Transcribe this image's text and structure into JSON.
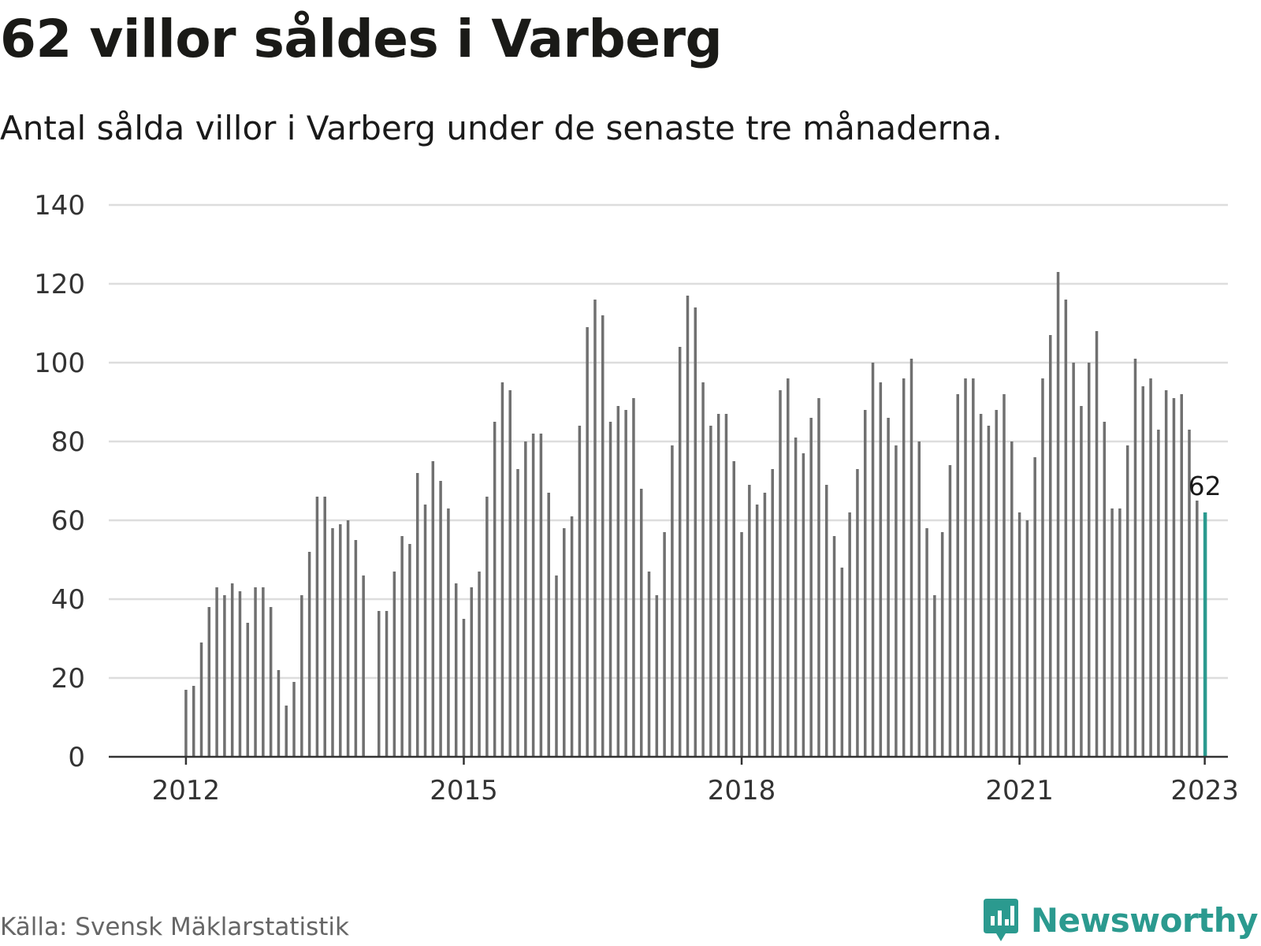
{
  "title": "62 villor såldes i Varberg",
  "subtitle": "Antal sålda villor i Varberg under de senaste tre månaderna.",
  "source": "Källa: Svensk Mäklarstatistik",
  "brand": {
    "name": "Newsworthy",
    "icon": "bar-chart-speech-bubble-icon"
  },
  "colors": {
    "bar": "#707070",
    "highlight": "#2b9a8f",
    "grid": "#dddddd",
    "axis": "#333333"
  },
  "chart_data": {
    "type": "bar",
    "title": "62 villor såldes i Varberg",
    "subtitle": "Antal sålda villor i Varberg under de senaste tre månaderna.",
    "xlabel": "",
    "ylabel": "",
    "x_start": "2012-01",
    "frequency": "monthly",
    "xlim": [
      "2011-03",
      "2023-04"
    ],
    "ylim": [
      0,
      140
    ],
    "yticks": [
      0,
      20,
      40,
      60,
      80,
      100,
      120,
      140
    ],
    "xticks": [
      {
        "label": "2012",
        "date": "2012-01"
      },
      {
        "label": "2015",
        "date": "2015-01"
      },
      {
        "label": "2018",
        "date": "2018-01"
      },
      {
        "label": "2021",
        "date": "2021-01"
      },
      {
        "label": "2023",
        "date": "2023-01"
      }
    ],
    "values": [
      17,
      18,
      29,
      38,
      43,
      41,
      44,
      42,
      34,
      43,
      43,
      38,
      22,
      13,
      19,
      41,
      52,
      66,
      66,
      58,
      59,
      60,
      55,
      46,
      null,
      37,
      37,
      47,
      56,
      54,
      72,
      64,
      75,
      70,
      63,
      44,
      35,
      43,
      47,
      66,
      85,
      95,
      93,
      73,
      80,
      82,
      82,
      67,
      46,
      58,
      61,
      84,
      109,
      116,
      112,
      85,
      89,
      88,
      91,
      68,
      47,
      41,
      57,
      79,
      104,
      117,
      114,
      95,
      84,
      87,
      87,
      75,
      57,
      69,
      64,
      67,
      73,
      93,
      96,
      81,
      77,
      86,
      91,
      69,
      56,
      48,
      62,
      73,
      88,
      100,
      95,
      86,
      79,
      96,
      101,
      80,
      58,
      41,
      57,
      74,
      92,
      96,
      96,
      87,
      84,
      88,
      92,
      80,
      62,
      60,
      76,
      96,
      107,
      123,
      116,
      100,
      89,
      100,
      108,
      85,
      63,
      63,
      79,
      101,
      94,
      96,
      83,
      93,
      91,
      92,
      83,
      65,
      62
    ],
    "highlight": {
      "date": "2023-01",
      "value": 62,
      "label": "62"
    },
    "grid": true,
    "legend": "none"
  }
}
